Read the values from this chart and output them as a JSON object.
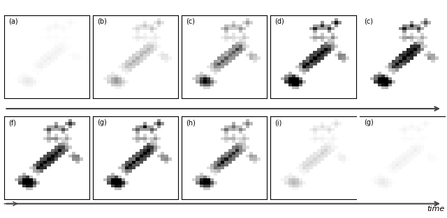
{
  "top_labels": [
    "(a)",
    "(b)",
    "(c)",
    "(d)",
    "(c)"
  ],
  "bot_labels": [
    "(f)",
    "(g)",
    "(h)",
    "(i)",
    "(g)"
  ],
  "n_cols": 5,
  "fig_width": 6.4,
  "fig_height": 3.13,
  "background": "#ffffff",
  "border_color": "#000000",
  "arrow_color": "#444444",
  "text_color": "#000000",
  "time_label": "time",
  "top_last_no_border": true,
  "bot_last_top_only": true
}
